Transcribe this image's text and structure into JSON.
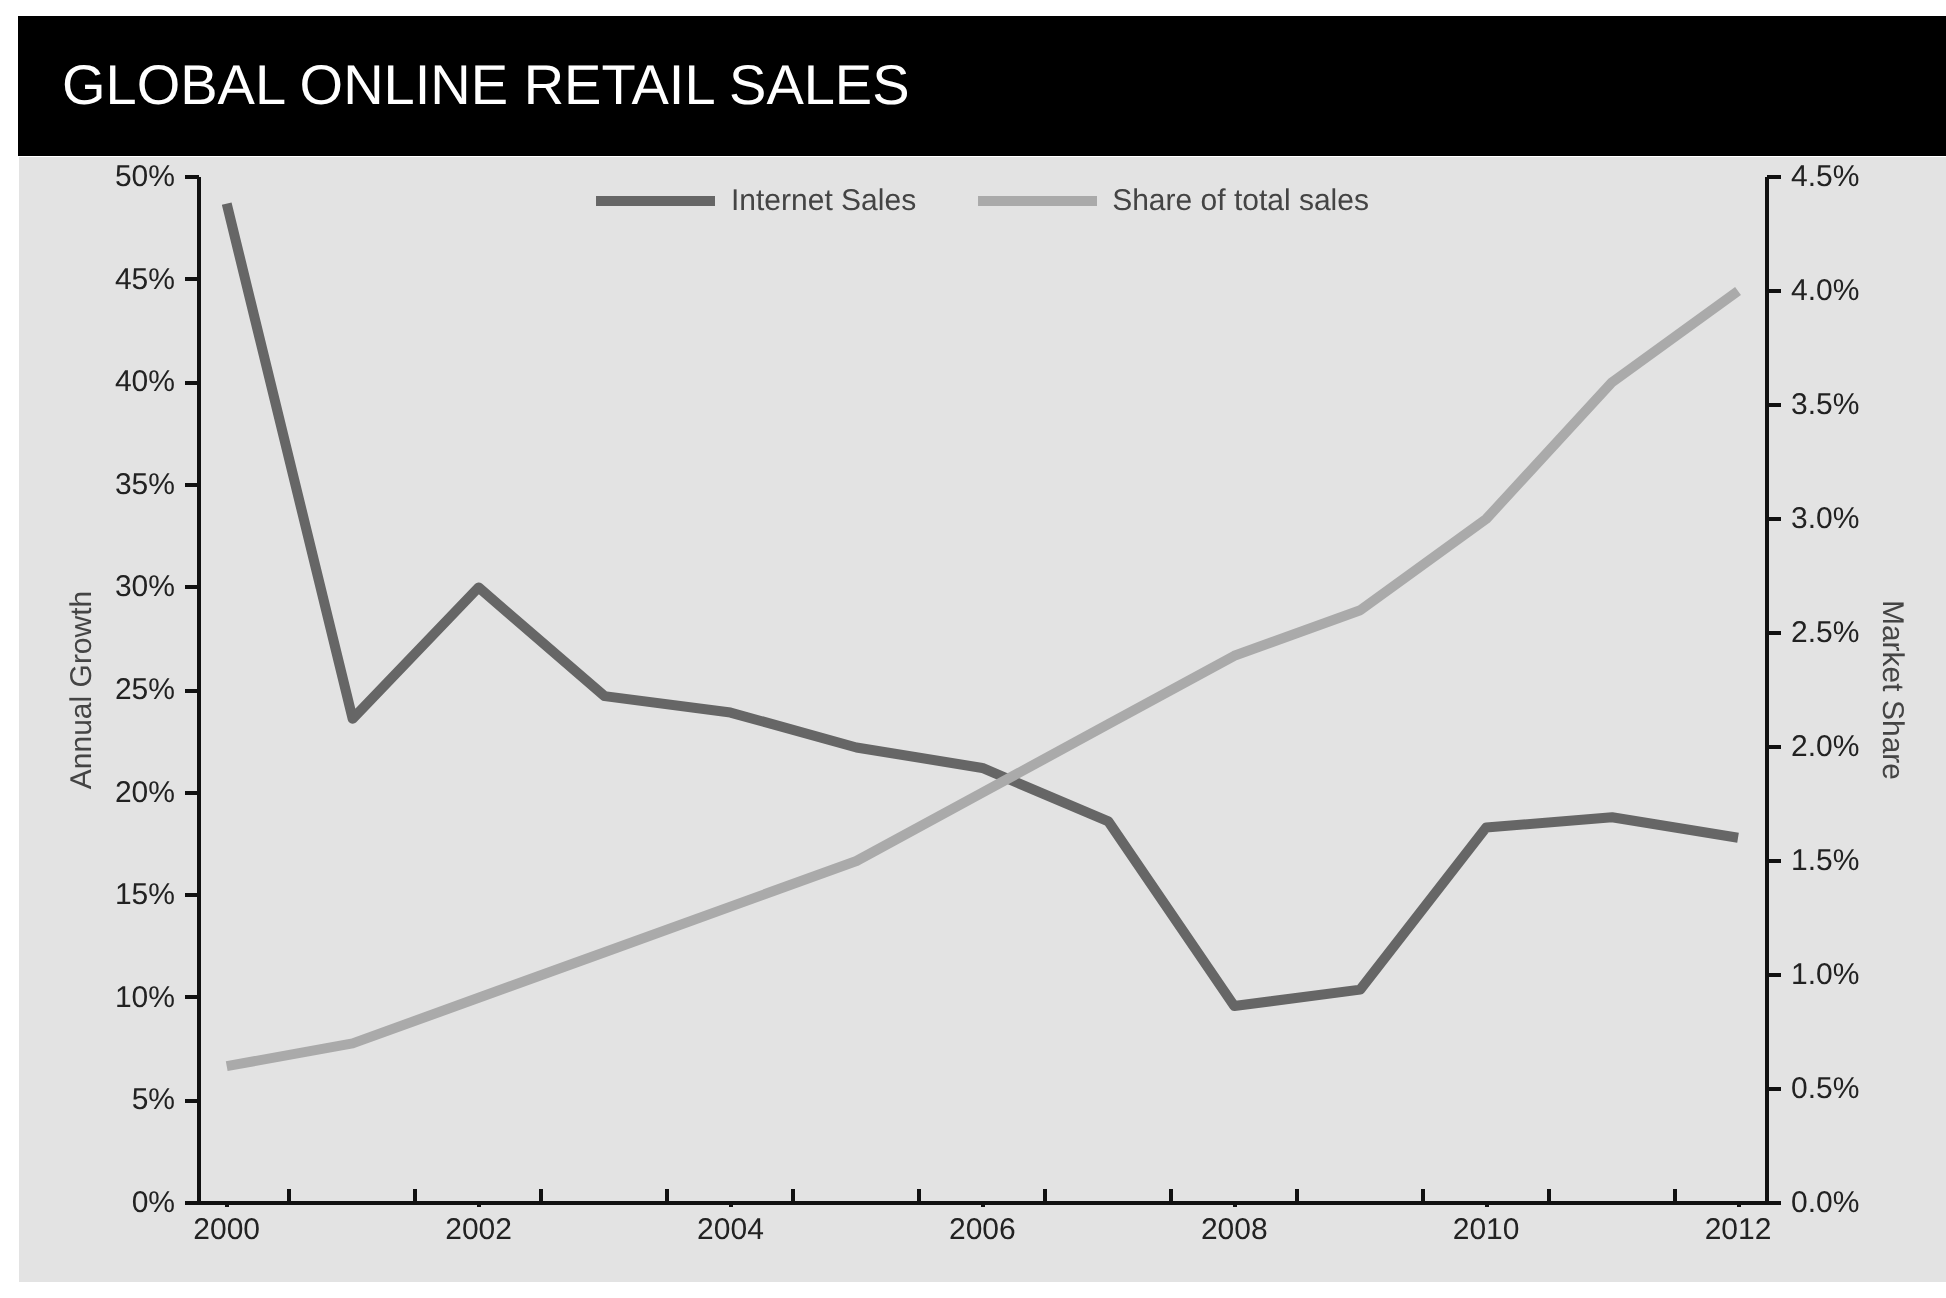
{
  "chart_data": {
    "type": "line",
    "title": "GLOBAL ONLINE RETAIL SALES",
    "ylabel": "Annual Growth",
    "y2label": "Market Share",
    "x": [
      2000,
      2001,
      2002,
      2003,
      2004,
      2005,
      2006,
      2007,
      2008,
      2009,
      2010,
      2011,
      2012
    ],
    "series": [
      {
        "name": "Internet Sales",
        "color": "#666666",
        "values": [
          48.7,
          23.6,
          30.0,
          24.7,
          23.9,
          22.2,
          21.2,
          18.6,
          9.6,
          10.4,
          18.3,
          18.8,
          17.8
        ]
      },
      {
        "name": "Share of total sales",
        "color": "#aaaaaa",
        "axis": "y2",
        "values": [
          0.6,
          0.7,
          0.9,
          1.1,
          1.3,
          1.5,
          1.8,
          2.1,
          2.4,
          2.6,
          3.0,
          3.6,
          4.0
        ]
      }
    ],
    "xlim": [
      1999.78,
      2012.23
    ],
    "xticks": [
      2000,
      {
        "value": 2000.5,
        "label": null
      },
      {
        "value": 2001.5,
        "label": null
      },
      2002,
      {
        "value": 2002.5,
        "label": null
      },
      {
        "value": 2003.5,
        "label": null
      },
      2004,
      {
        "value": 2004.5,
        "label": null
      },
      {
        "value": 2005.5,
        "label": null
      },
      2006,
      {
        "value": 2006.5,
        "label": null
      },
      {
        "value": 2007.5,
        "label": null
      },
      2008,
      {
        "value": 2008.5,
        "label": null
      },
      {
        "value": 2009.5,
        "label": null
      },
      2010,
      {
        "value": 2010.5,
        "label": null
      },
      {
        "value": 2011.5,
        "label": null
      },
      2012
    ],
    "ylim": [
      0,
      50
    ],
    "yticks": [
      {
        "value": 0,
        "label": "0%"
      },
      {
        "value": 5,
        "label": "5%"
      },
      {
        "value": 10,
        "label": "10%"
      },
      {
        "value": 15,
        "label": "15%"
      },
      {
        "value": 20,
        "label": "20%"
      },
      {
        "value": 25,
        "label": "25%"
      },
      {
        "value": 30,
        "label": "30%"
      },
      {
        "value": 35,
        "label": "35%"
      },
      {
        "value": 40,
        "label": "40%"
      },
      {
        "value": 45,
        "label": "45%"
      },
      {
        "value": 50,
        "label": "50%"
      }
    ],
    "y2lim": [
      0,
      4.5
    ],
    "y2ticks": [
      {
        "value": 0,
        "label": "0.0%"
      },
      {
        "value": 0.5,
        "label": "0.5%"
      },
      {
        "value": 1,
        "label": "1.0%"
      },
      {
        "value": 1.5,
        "label": "1.5%"
      },
      {
        "value": 2,
        "label": "2.0%"
      },
      {
        "value": 2.5,
        "label": "2.5%"
      },
      {
        "value": 3,
        "label": "3.0%"
      },
      {
        "value": 3.5,
        "label": "3.5%"
      },
      {
        "value": 4,
        "label": "4.0%"
      },
      {
        "value": 4.5,
        "label": "4.5%"
      }
    ],
    "legend": "top",
    "marker": "none",
    "line_style": "solid"
  }
}
